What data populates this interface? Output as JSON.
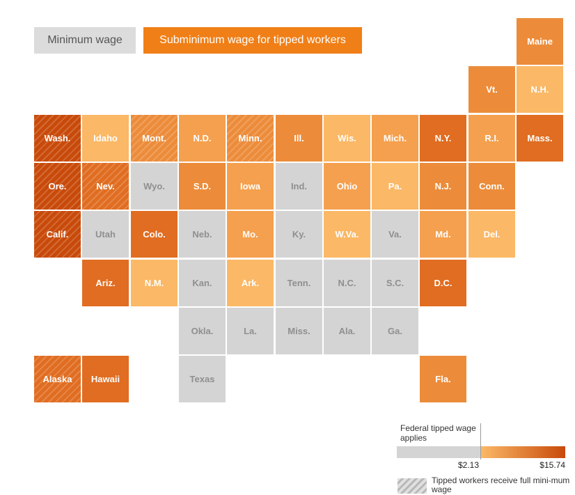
{
  "tabs": {
    "minimum_wage": "Minimum wage",
    "subminimum": "Subminimum wage for tipped workers"
  },
  "colors": {
    "gray": "#d4d4d4",
    "level1": "#fbb866",
    "level2": "#f5a04e",
    "level3": "#ec8c3a",
    "level4": "#e06d21",
    "level5": "#c84a0a"
  },
  "states": [
    {
      "label": "Maine",
      "row": 0,
      "col": 10,
      "level": 3,
      "hatch": false
    },
    {
      "label": "Vt.",
      "row": 1,
      "col": 9,
      "level": 3,
      "hatch": false
    },
    {
      "label": "N.H.",
      "row": 1,
      "col": 10,
      "level": 1,
      "hatch": false
    },
    {
      "label": "Wash.",
      "row": 2,
      "col": 0,
      "level": 5,
      "hatch": true
    },
    {
      "label": "Idaho",
      "row": 2,
      "col": 1,
      "level": 1,
      "hatch": false
    },
    {
      "label": "Mont.",
      "row": 2,
      "col": 2,
      "level": 3,
      "hatch": true
    },
    {
      "label": "N.D.",
      "row": 2,
      "col": 3,
      "level": 2,
      "hatch": false
    },
    {
      "label": "Minn.",
      "row": 2,
      "col": 4,
      "level": 3,
      "hatch": true
    },
    {
      "label": "Ill.",
      "row": 2,
      "col": 5,
      "level": 3,
      "hatch": false
    },
    {
      "label": "Wis.",
      "row": 2,
      "col": 6,
      "level": 1,
      "hatch": false
    },
    {
      "label": "Mich.",
      "row": 2,
      "col": 7,
      "level": 2,
      "hatch": false
    },
    {
      "label": "N.Y.",
      "row": 2,
      "col": 8,
      "level": 4,
      "hatch": false
    },
    {
      "label": "R.I.",
      "row": 2,
      "col": 9,
      "level": 2,
      "hatch": false
    },
    {
      "label": "Mass.",
      "row": 2,
      "col": 10,
      "level": 4,
      "hatch": false
    },
    {
      "label": "Ore.",
      "row": 3,
      "col": 0,
      "level": 5,
      "hatch": true
    },
    {
      "label": "Nev.",
      "row": 3,
      "col": 1,
      "level": 4,
      "hatch": true
    },
    {
      "label": "Wyo.",
      "row": 3,
      "col": 2,
      "level": 0,
      "hatch": false
    },
    {
      "label": "S.D.",
      "row": 3,
      "col": 3,
      "level": 3,
      "hatch": false
    },
    {
      "label": "Iowa",
      "row": 3,
      "col": 4,
      "level": 2,
      "hatch": false
    },
    {
      "label": "Ind.",
      "row": 3,
      "col": 5,
      "level": 0,
      "hatch": false
    },
    {
      "label": "Ohio",
      "row": 3,
      "col": 6,
      "level": 2,
      "hatch": false
    },
    {
      "label": "Pa.",
      "row": 3,
      "col": 7,
      "level": 1,
      "hatch": false
    },
    {
      "label": "N.J.",
      "row": 3,
      "col": 8,
      "level": 3,
      "hatch": false
    },
    {
      "label": "Conn.",
      "row": 3,
      "col": 9,
      "level": 3,
      "hatch": false
    },
    {
      "label": "Calif.",
      "row": 4,
      "col": 0,
      "level": 5,
      "hatch": true
    },
    {
      "label": "Utah",
      "row": 4,
      "col": 1,
      "level": 0,
      "hatch": false
    },
    {
      "label": "Colo.",
      "row": 4,
      "col": 2,
      "level": 4,
      "hatch": false
    },
    {
      "label": "Neb.",
      "row": 4,
      "col": 3,
      "level": 0,
      "hatch": false
    },
    {
      "label": "Mo.",
      "row": 4,
      "col": 4,
      "level": 2,
      "hatch": false
    },
    {
      "label": "Ky.",
      "row": 4,
      "col": 5,
      "level": 0,
      "hatch": false
    },
    {
      "label": "W.Va.",
      "row": 4,
      "col": 6,
      "level": 1,
      "hatch": false
    },
    {
      "label": "Va.",
      "row": 4,
      "col": 7,
      "level": 0,
      "hatch": false
    },
    {
      "label": "Md.",
      "row": 4,
      "col": 8,
      "level": 2,
      "hatch": false
    },
    {
      "label": "Del.",
      "row": 4,
      "col": 9,
      "level": 1,
      "hatch": false
    },
    {
      "label": "Ariz.",
      "row": 5,
      "col": 1,
      "level": 4,
      "hatch": false
    },
    {
      "label": "N.M.",
      "row": 5,
      "col": 2,
      "level": 1,
      "hatch": false
    },
    {
      "label": "Kan.",
      "row": 5,
      "col": 3,
      "level": 0,
      "hatch": false
    },
    {
      "label": "Ark.",
      "row": 5,
      "col": 4,
      "level": 1,
      "hatch": false
    },
    {
      "label": "Tenn.",
      "row": 5,
      "col": 5,
      "level": 0,
      "hatch": false
    },
    {
      "label": "N.C.",
      "row": 5,
      "col": 6,
      "level": 0,
      "hatch": false
    },
    {
      "label": "S.C.",
      "row": 5,
      "col": 7,
      "level": 0,
      "hatch": false
    },
    {
      "label": "D.C.",
      "row": 5,
      "col": 8,
      "level": 4,
      "hatch": false
    },
    {
      "label": "Okla.",
      "row": 6,
      "col": 3,
      "level": 0,
      "hatch": false
    },
    {
      "label": "La.",
      "row": 6,
      "col": 4,
      "level": 0,
      "hatch": false
    },
    {
      "label": "Miss.",
      "row": 6,
      "col": 5,
      "level": 0,
      "hatch": false
    },
    {
      "label": "Ala.",
      "row": 6,
      "col": 6,
      "level": 0,
      "hatch": false
    },
    {
      "label": "Ga.",
      "row": 6,
      "col": 7,
      "level": 0,
      "hatch": false
    },
    {
      "label": "Alaska",
      "row": 7,
      "col": 0,
      "level": 4,
      "hatch": true
    },
    {
      "label": "Hawaii",
      "row": 7,
      "col": 1,
      "level": 4,
      "hatch": false
    },
    {
      "label": "Texas",
      "row": 7,
      "col": 3,
      "level": 0,
      "hatch": false
    },
    {
      "label": "Fla.",
      "row": 7,
      "col": 8,
      "level": 3,
      "hatch": false
    }
  ],
  "legend": {
    "federal_label": "Federal tipped wage applies",
    "min_value": "$2.13",
    "max_value": "$15.74",
    "hatch_label": "Tipped workers receive full mini-mum wage"
  }
}
